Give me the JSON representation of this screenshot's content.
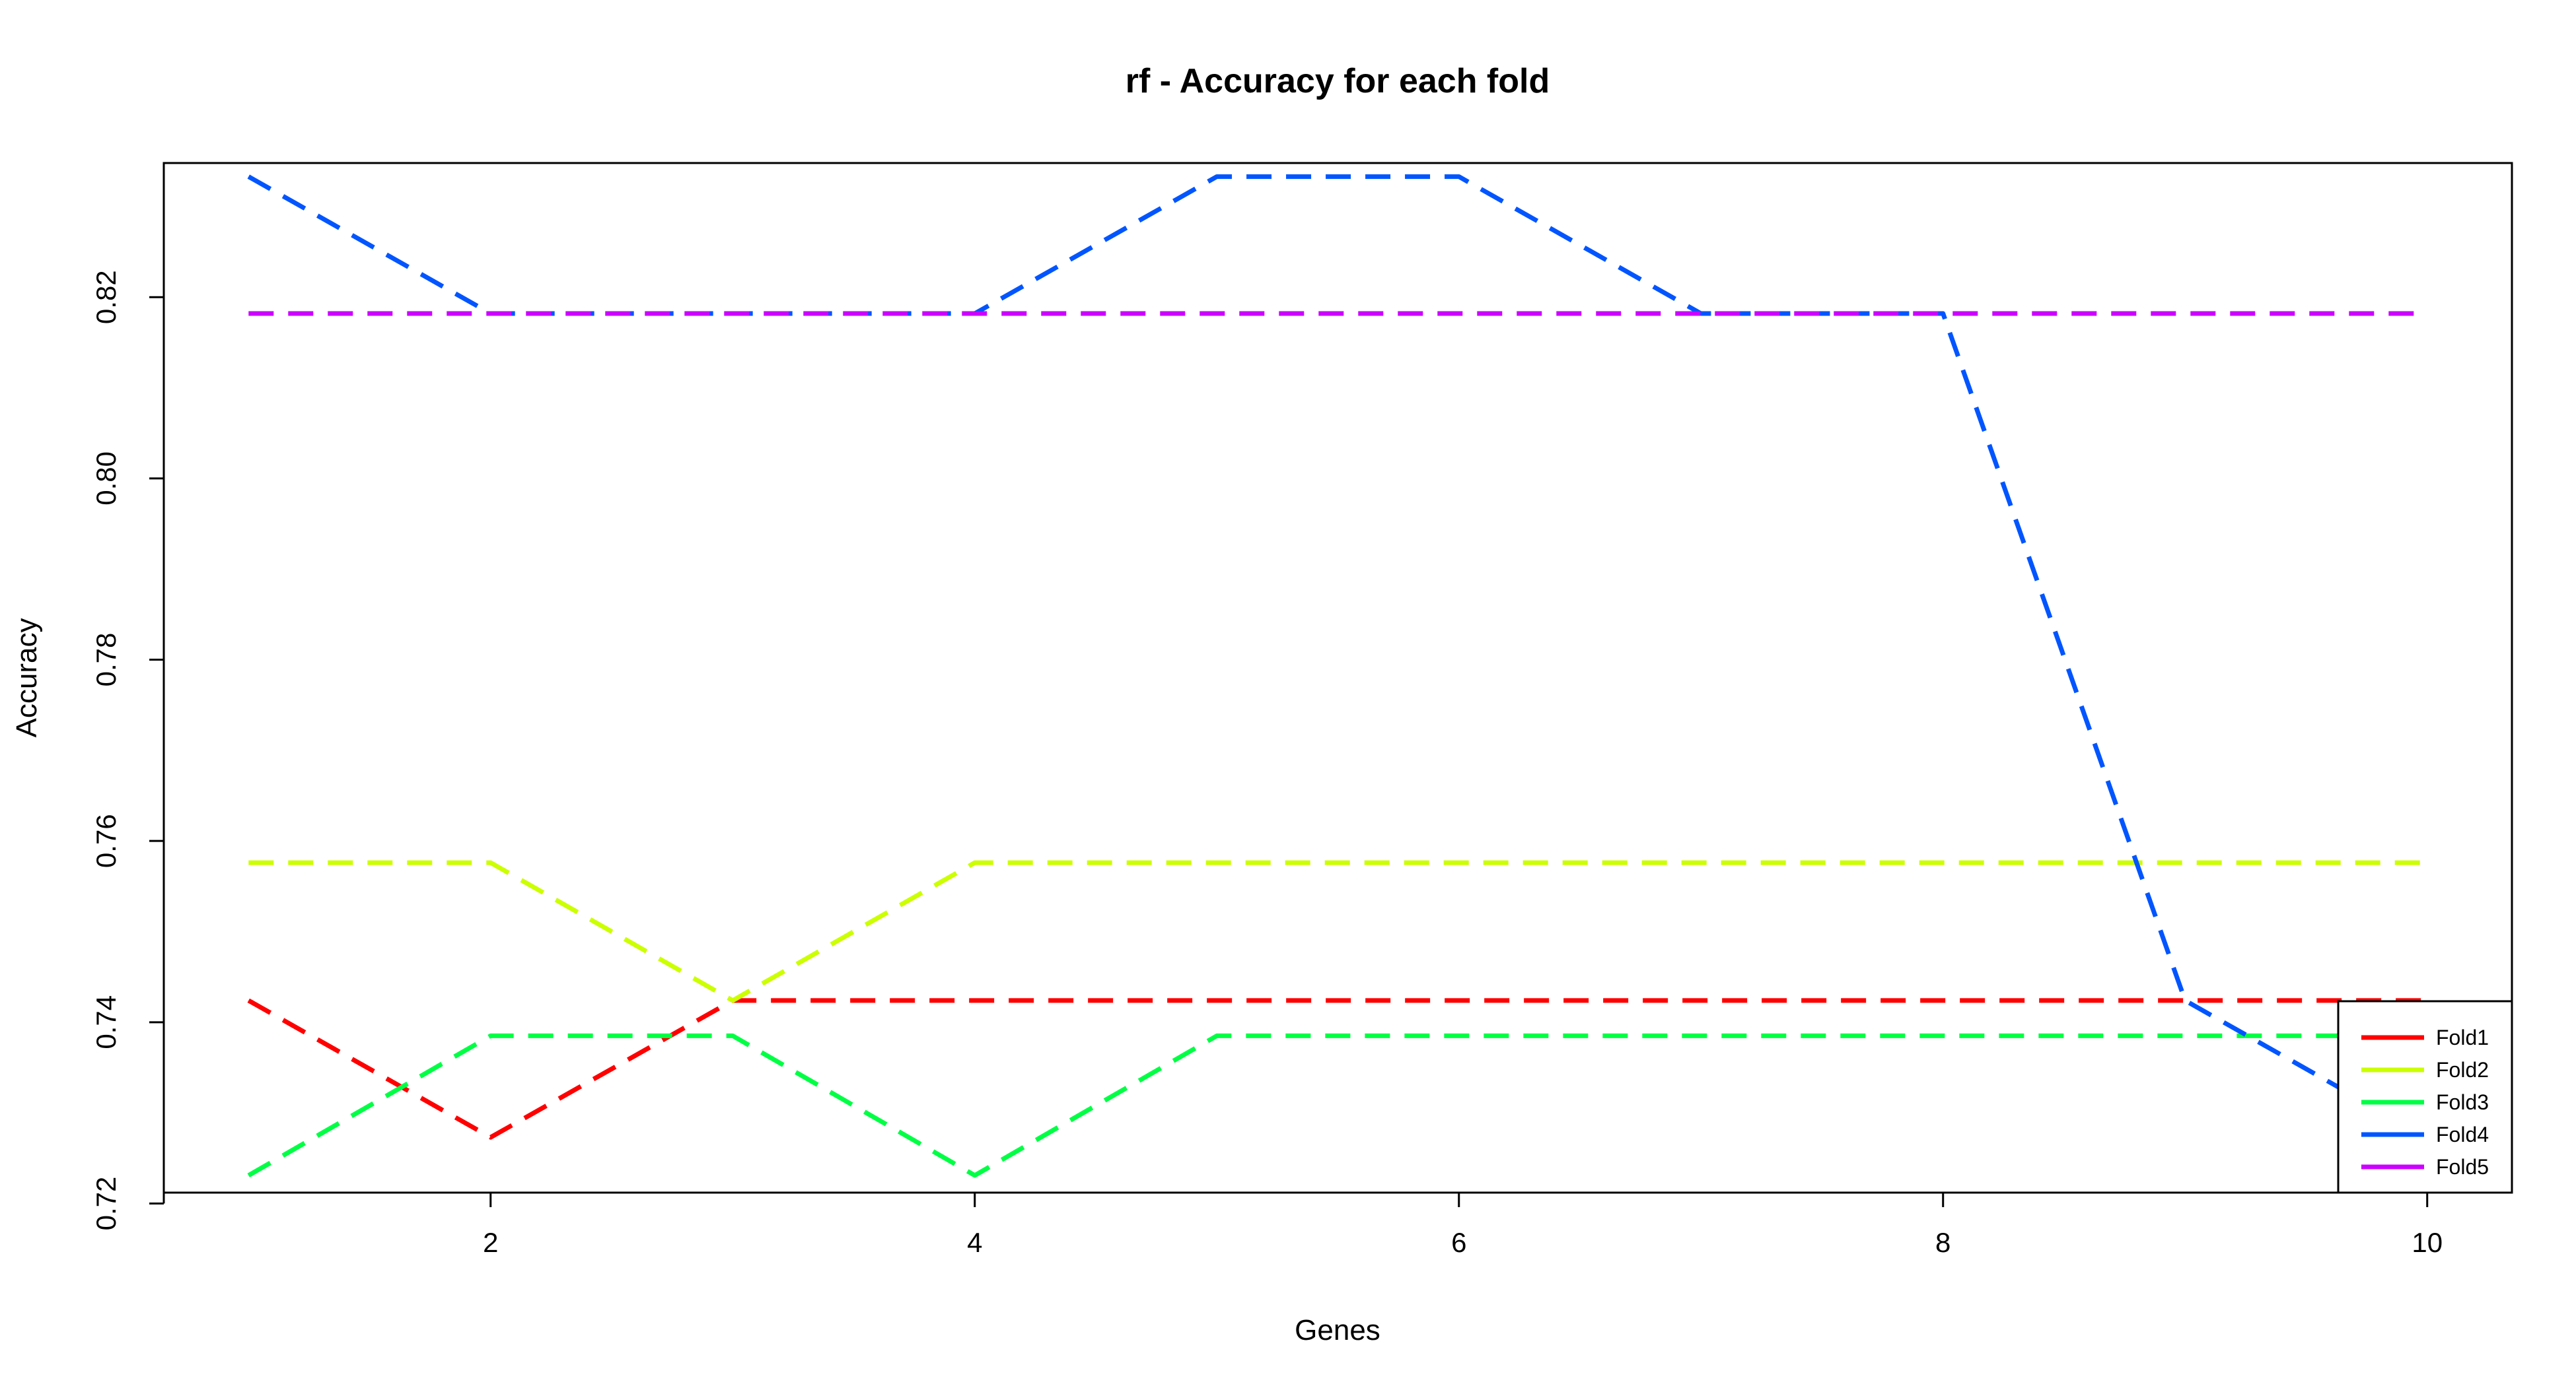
{
  "chart_data": {
    "type": "line",
    "title": "rf - Accuracy for each fold",
    "xlabel": "Genes",
    "ylabel": "Accuracy",
    "x": [
      1,
      2,
      3,
      4,
      5,
      6,
      7,
      8,
      9,
      10
    ],
    "xlim": [
      0.65,
      10.35
    ],
    "ylim": [
      0.7212,
      0.8348
    ],
    "x_ticks": [
      2,
      4,
      6,
      8,
      10
    ],
    "y_ticks": [
      0.72,
      0.74,
      0.76,
      0.78,
      0.8,
      0.82
    ],
    "x_tick_labels": [
      "2",
      "4",
      "6",
      "8",
      "10"
    ],
    "y_tick_labels": [
      "0.72",
      "0.74",
      "0.76",
      "0.78",
      "0.80",
      "0.82"
    ],
    "line_style": "dashed",
    "grid": false,
    "legend_position": "bottom-right",
    "series": [
      {
        "name": "Fold1",
        "color": "#ff0000",
        "values": [
          0.7424,
          0.7273,
          0.7424,
          0.7424,
          0.7424,
          0.7424,
          0.7424,
          0.7424,
          0.7424,
          0.7424
        ]
      },
      {
        "name": "Fold2",
        "color": "#ccff00",
        "values": [
          0.7576,
          0.7576,
          0.7424,
          0.7576,
          0.7576,
          0.7576,
          0.7576,
          0.7576,
          0.7576,
          0.7576
        ]
      },
      {
        "name": "Fold3",
        "color": "#00ff44",
        "values": [
          0.7231,
          0.7385,
          0.7385,
          0.7231,
          0.7385,
          0.7385,
          0.7385,
          0.7385,
          0.7385,
          0.7385
        ]
      },
      {
        "name": "Fold4",
        "color": "#0055ff",
        "values": [
          0.8333,
          0.8182,
          0.8182,
          0.8182,
          0.8333,
          0.8333,
          0.8182,
          0.8182,
          0.7424,
          0.7273
        ]
      },
      {
        "name": "Fold5",
        "color": "#cc00ff",
        "values": [
          0.8182,
          0.8182,
          0.8182,
          0.8182,
          0.8182,
          0.8182,
          0.8182,
          0.8182,
          0.8182,
          0.8182
        ]
      }
    ]
  }
}
